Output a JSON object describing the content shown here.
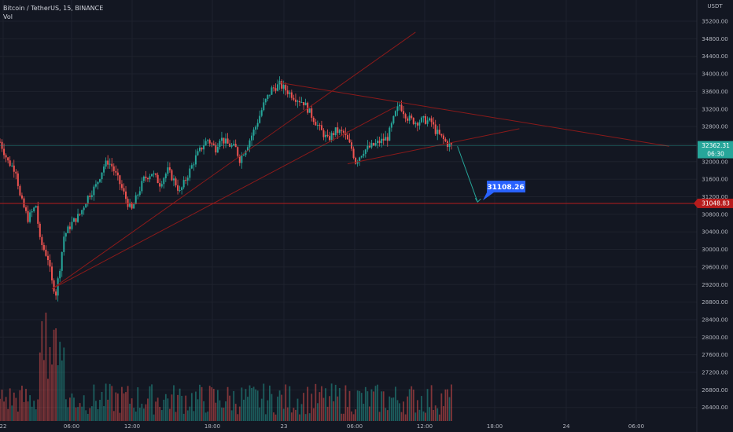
{
  "legend": {
    "symbol_line": "Bitcoin / TetherUS, 15, BINANCE",
    "volume_label": "Vol"
  },
  "currency": "USDT",
  "colors": {
    "background": "#131722",
    "grid": "#1e222d",
    "up": "#26a69a",
    "down": "#ef5350",
    "trendline": "#8b1a1a",
    "level": "#b71c1c",
    "arrow": "#26a69a",
    "axis_text": "#b2b5be"
  },
  "chart_data": {
    "type": "candlestick",
    "title": "Bitcoin / TetherUS, 15, BINANCE",
    "y_tick_labels": [
      "35200.00",
      "34800.00",
      "34400.00",
      "34000.00",
      "33600.00",
      "33200.00",
      "32800.00",
      "32400.00",
      "32000.00",
      "31600.00",
      "31200.00",
      "30800.00",
      "30400.00",
      "30000.00",
      "29600.00",
      "29200.00",
      "28800.00",
      "28400.00",
      "28000.00",
      "27600.00",
      "27200.00",
      "26800.00",
      "26400.00"
    ],
    "x_tick_labels": [
      "22",
      "06:00",
      "12:00",
      "18:00",
      "23",
      "06:00",
      "12:00",
      "18:00",
      "24",
      "06:00"
    ],
    "ylim": [
      26200,
      35500
    ],
    "grid": true,
    "price_labels": {
      "last_price": "32362.31",
      "countdown": "06:30",
      "horizontal_level": "31048.83",
      "target": "31108.26"
    },
    "price_path": [
      [
        0,
        32450
      ],
      [
        4,
        32000
      ],
      [
        8,
        31800
      ],
      [
        10,
        31200
      ],
      [
        14,
        30700
      ],
      [
        18,
        31000
      ],
      [
        20,
        30200
      ],
      [
        24,
        29800
      ],
      [
        26,
        29250
      ],
      [
        28,
        29000
      ],
      [
        30,
        29600
      ],
      [
        32,
        30300
      ],
      [
        36,
        30600
      ],
      [
        40,
        30800
      ],
      [
        44,
        31200
      ],
      [
        48,
        31450
      ],
      [
        52,
        31900
      ],
      [
        54,
        32000
      ],
      [
        56,
        31900
      ],
      [
        60,
        31500
      ],
      [
        64,
        31050
      ],
      [
        66,
        30900
      ],
      [
        68,
        31150
      ],
      [
        72,
        31600
      ],
      [
        76,
        31750
      ],
      [
        80,
        31500
      ],
      [
        84,
        31800
      ],
      [
        88,
        31500
      ],
      [
        90,
        31300
      ],
      [
        94,
        31700
      ],
      [
        98,
        32100
      ],
      [
        102,
        32400
      ],
      [
        104,
        32500
      ],
      [
        108,
        32300
      ],
      [
        110,
        32550
      ],
      [
        114,
        32400
      ],
      [
        118,
        32300
      ],
      [
        120,
        32050
      ],
      [
        124,
        32400
      ],
      [
        128,
        32800
      ],
      [
        132,
        33300
      ],
      [
        136,
        33650
      ],
      [
        140,
        33750
      ],
      [
        144,
        33600
      ],
      [
        148,
        33450
      ],
      [
        152,
        33350
      ],
      [
        156,
        33050
      ],
      [
        160,
        32750
      ],
      [
        164,
        32500
      ],
      [
        168,
        32700
      ],
      [
        172,
        32650
      ],
      [
        176,
        32300
      ],
      [
        178,
        32000
      ],
      [
        182,
        32250
      ],
      [
        186,
        32350
      ],
      [
        190,
        32450
      ],
      [
        194,
        32550
      ],
      [
        198,
        33100
      ],
      [
        200,
        33300
      ],
      [
        204,
        33000
      ],
      [
        208,
        32900
      ],
      [
        212,
        32950
      ],
      [
        216,
        32900
      ],
      [
        218,
        32700
      ],
      [
        220,
        32600
      ],
      [
        224,
        32400
      ],
      [
        226,
        32362
      ]
    ],
    "annotations": {
      "trendlines": [
        {
          "from": [
            26,
            29100
          ],
          "to": [
            208,
            34950
          ]
        },
        {
          "from": [
            26,
            29100
          ],
          "to": [
            198,
            33250
          ]
        },
        {
          "from": [
            140,
            33800
          ],
          "to": [
            335,
            32350
          ]
        },
        {
          "from": [
            174,
            31950
          ],
          "to": [
            260,
            32750
          ]
        }
      ],
      "horizontal_line": 31048.83,
      "projection_arrow": {
        "from": [
          229,
          32350
        ],
        "to": [
          232,
          31080
        ]
      }
    }
  }
}
